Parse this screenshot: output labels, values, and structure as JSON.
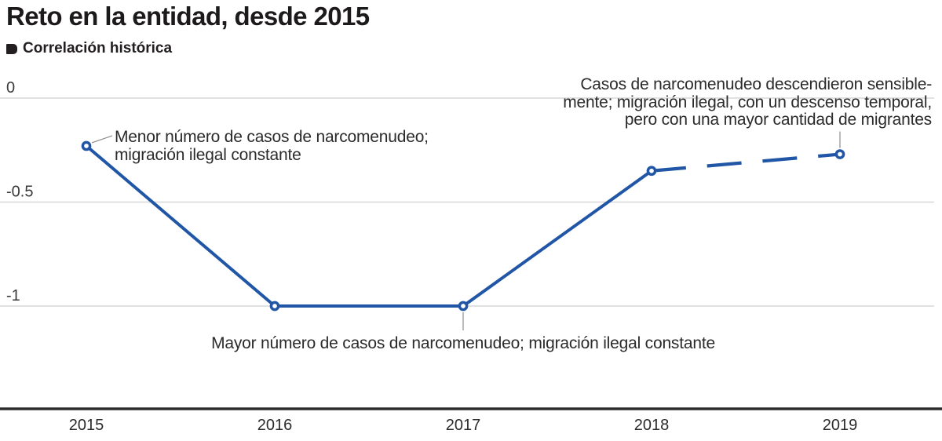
{
  "header": {
    "title": "Reto en la entidad, desde 2015",
    "legend": {
      "label": "Correlación histórica",
      "swatch_color": "#231f20"
    }
  },
  "chart_data": {
    "type": "line",
    "title": "Reto en la entidad, desde 2015",
    "xlabel": "",
    "ylabel": "",
    "x": [
      "2015",
      "2016",
      "2017",
      "2018",
      "2019"
    ],
    "series": [
      {
        "name": "Correlación histórica",
        "values": [
          -0.23,
          -1.0,
          -1.0,
          -0.35,
          -0.27
        ],
        "line_style": "solid from 2015 to 2018, dashed (projection) from 2018 to 2019"
      }
    ],
    "yticks": [
      0,
      -0.5,
      -1
    ],
    "ytick_labels": [
      "0",
      "-0.5",
      "-1"
    ],
    "ylim": [
      -1.1,
      0
    ],
    "grid": true,
    "legend_position": "top-left under title",
    "style": {
      "line_color": "#2156a6",
      "marker_fill": "#ffffff",
      "grid_color": "#d7d7d7",
      "axis_color": "#2d2d2d",
      "tick_label_color": "#3a3a3a",
      "leader_color": "#8c8c8c"
    },
    "annotations": [
      {
        "target_year": "2015",
        "lines": [
          "Menor número de casos de narcomenudeo;",
          "migración ilegal constante"
        ]
      },
      {
        "target_year": "2017",
        "lines": [
          "Mayor número de casos de narcomenudeo; migración ilegal constante"
        ]
      },
      {
        "target_year": "2019",
        "lines": [
          "Casos de narcomenudeo descendieron sensible-",
          "mente; migración ilegal, con un descenso temporal,",
          "pero con una mayor cantidad de migrantes"
        ]
      }
    ]
  }
}
